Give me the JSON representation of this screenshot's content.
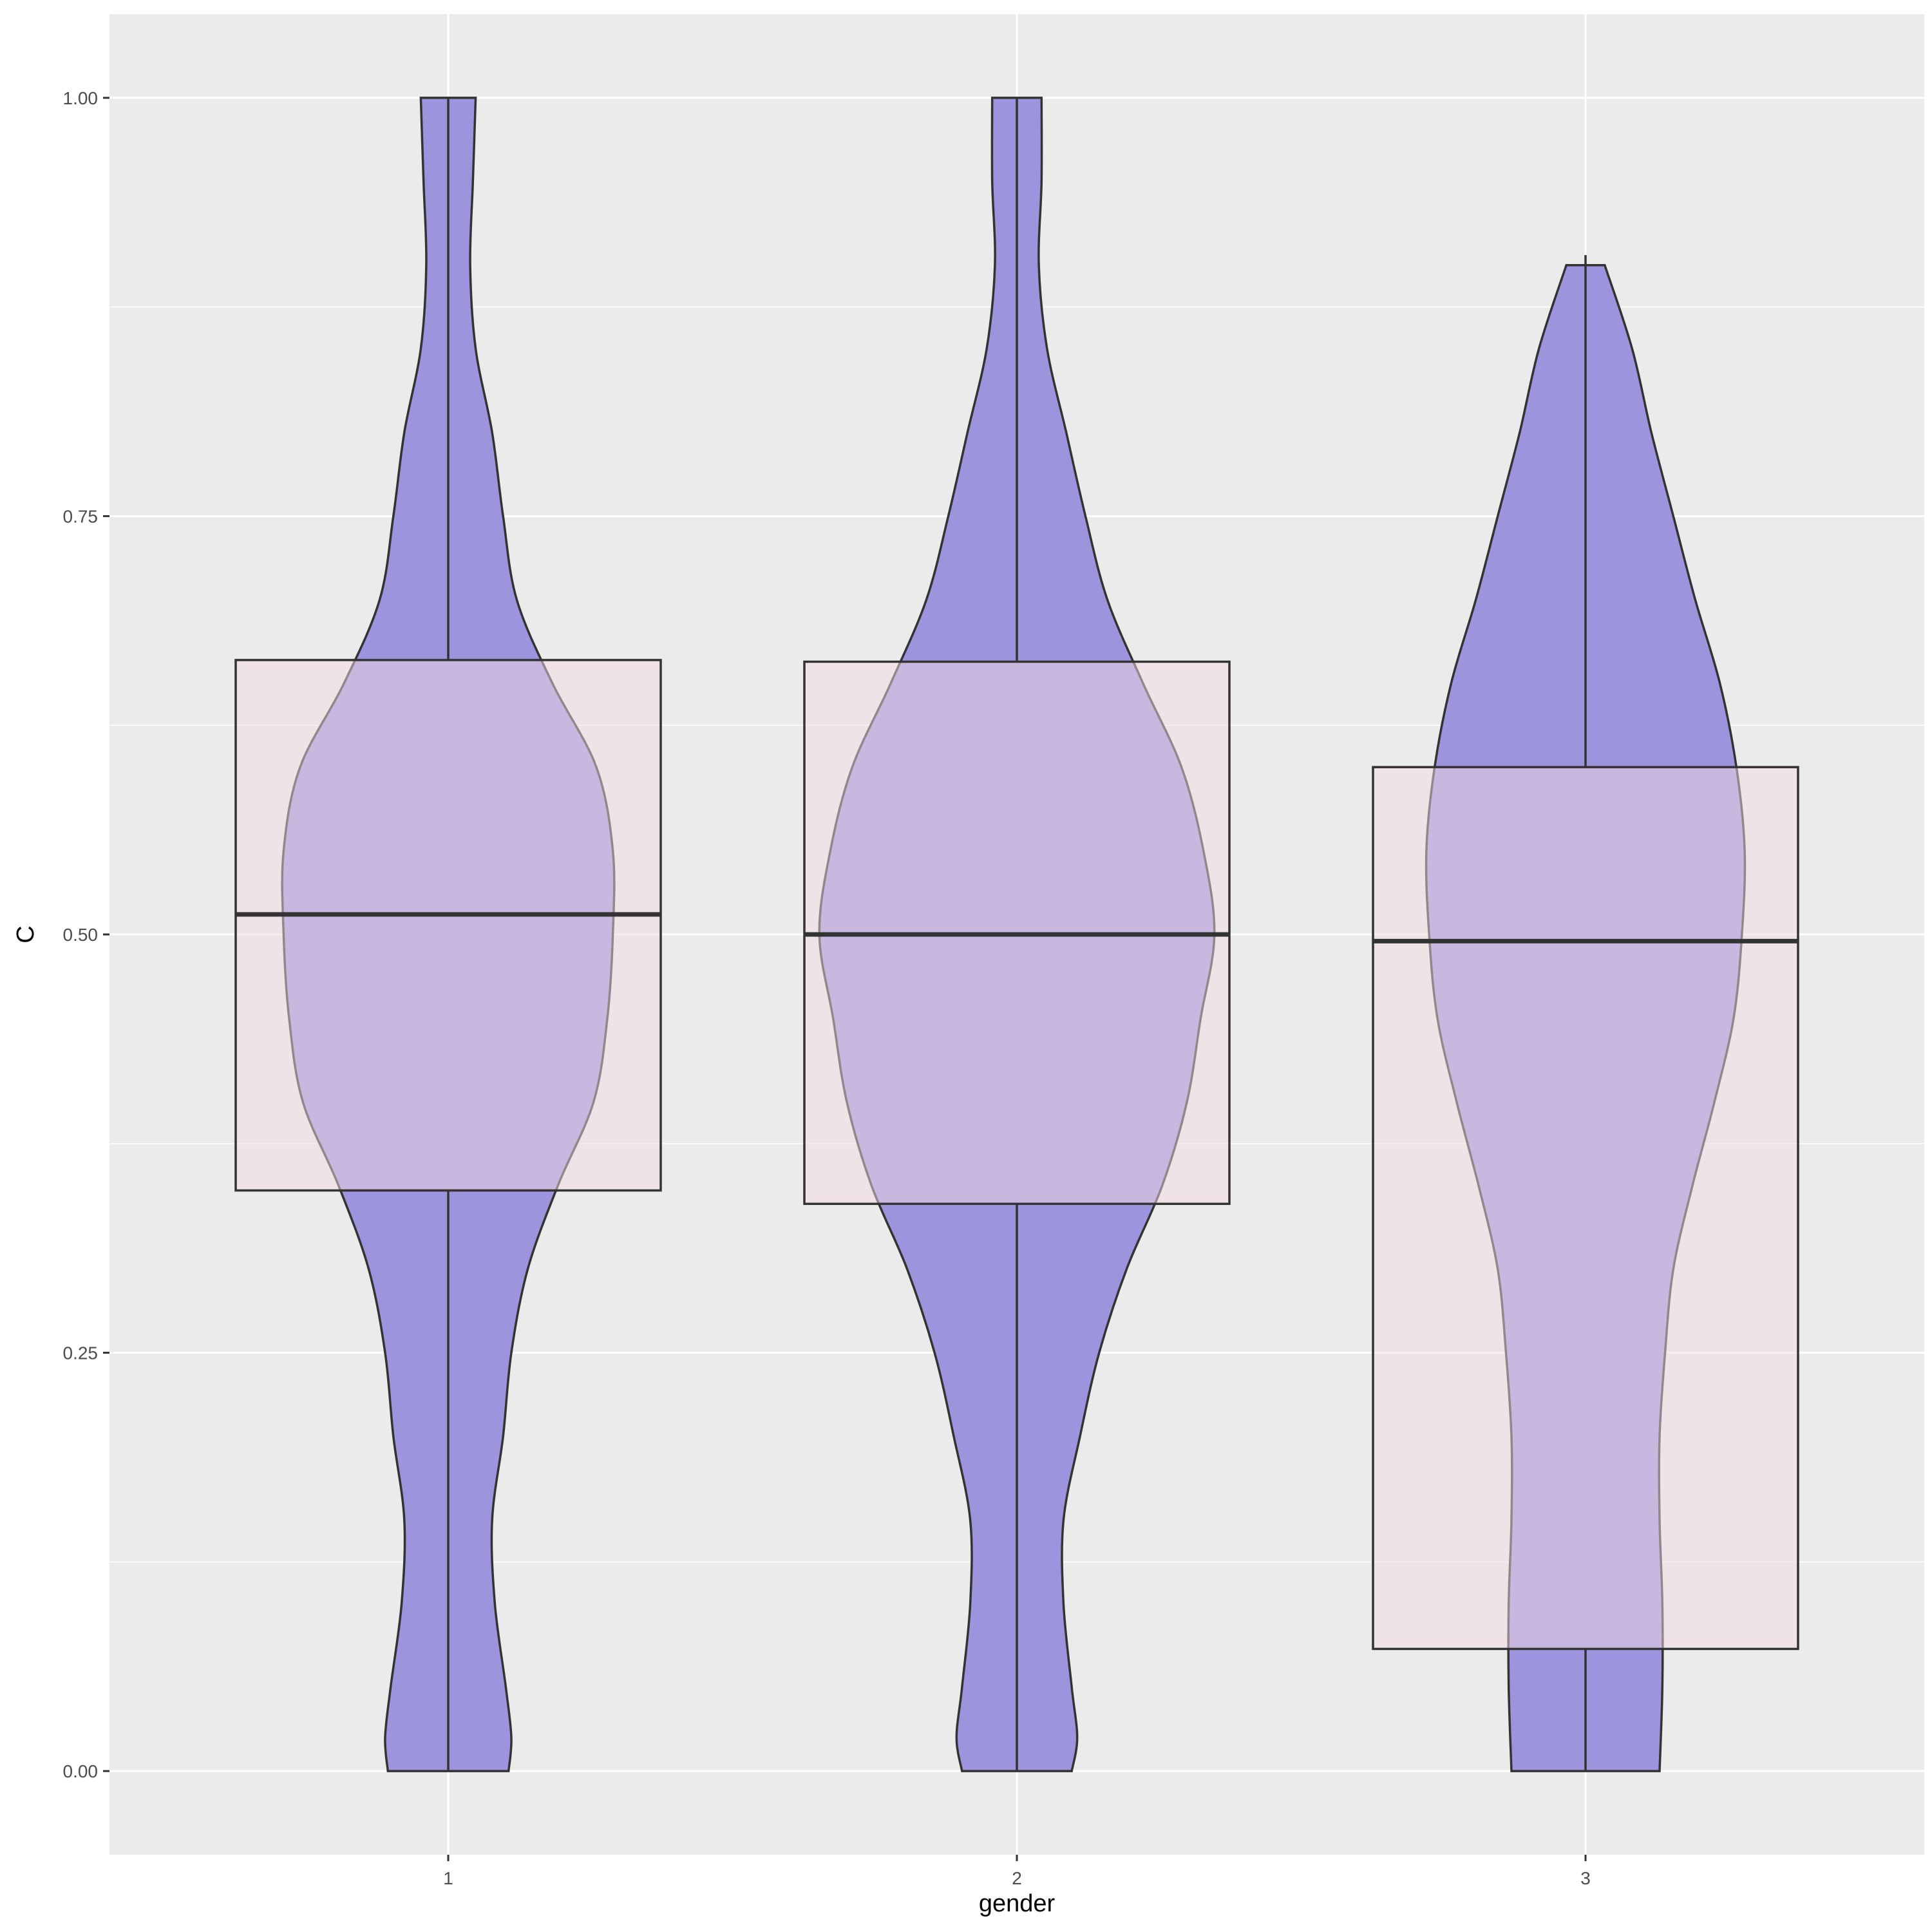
{
  "chart_data": {
    "type": "violin",
    "xlabel": "gender",
    "ylabel": "C",
    "categories": [
      "1",
      "2",
      "3"
    ],
    "ylim": [
      -0.05,
      1.05
    ],
    "y_ticks": [
      0.0,
      0.25,
      0.5,
      0.75,
      1.0
    ],
    "y_tick_labels": [
      "0.00",
      "0.25",
      "0.50",
      "0.75",
      "1.00"
    ],
    "grid": true,
    "legend": "none",
    "colors": {
      "panel": "#ebebeb",
      "grid": "#ffffff",
      "violin_fill": "#9c94dc",
      "box_fill": "#f4dce3",
      "outline": "#333333"
    },
    "violins": [
      {
        "category": "1",
        "density": [
          [
            0.0,
            0.22
          ],
          [
            0.02,
            0.23
          ],
          [
            0.05,
            0.21
          ],
          [
            0.1,
            0.17
          ],
          [
            0.15,
            0.16
          ],
          [
            0.2,
            0.2
          ],
          [
            0.25,
            0.23
          ],
          [
            0.3,
            0.29
          ],
          [
            0.35,
            0.4
          ],
          [
            0.4,
            0.53
          ],
          [
            0.45,
            0.58
          ],
          [
            0.5,
            0.6
          ],
          [
            0.55,
            0.6
          ],
          [
            0.6,
            0.54
          ],
          [
            0.65,
            0.38
          ],
          [
            0.7,
            0.25
          ],
          [
            0.75,
            0.2
          ],
          [
            0.8,
            0.16
          ],
          [
            0.85,
            0.1
          ],
          [
            0.9,
            0.08
          ],
          [
            0.95,
            0.09
          ],
          [
            1.0,
            0.1
          ]
        ]
      },
      {
        "category": "2",
        "density": [
          [
            0.0,
            0.2
          ],
          [
            0.02,
            0.22
          ],
          [
            0.05,
            0.2
          ],
          [
            0.1,
            0.17
          ],
          [
            0.15,
            0.17
          ],
          [
            0.2,
            0.23
          ],
          [
            0.25,
            0.3
          ],
          [
            0.3,
            0.4
          ],
          [
            0.35,
            0.53
          ],
          [
            0.4,
            0.62
          ],
          [
            0.45,
            0.67
          ],
          [
            0.5,
            0.72
          ],
          [
            0.55,
            0.68
          ],
          [
            0.6,
            0.6
          ],
          [
            0.65,
            0.46
          ],
          [
            0.7,
            0.33
          ],
          [
            0.75,
            0.25
          ],
          [
            0.8,
            0.18
          ],
          [
            0.85,
            0.11
          ],
          [
            0.9,
            0.08
          ],
          [
            0.95,
            0.09
          ],
          [
            1.0,
            0.09
          ]
        ]
      },
      {
        "category": "3",
        "density": [
          [
            0.0,
            0.27
          ],
          [
            0.05,
            0.28
          ],
          [
            0.1,
            0.28
          ],
          [
            0.15,
            0.27
          ],
          [
            0.2,
            0.27
          ],
          [
            0.25,
            0.29
          ],
          [
            0.3,
            0.32
          ],
          [
            0.35,
            0.39
          ],
          [
            0.4,
            0.47
          ],
          [
            0.45,
            0.54
          ],
          [
            0.5,
            0.57
          ],
          [
            0.55,
            0.58
          ],
          [
            0.6,
            0.55
          ],
          [
            0.65,
            0.49
          ],
          [
            0.7,
            0.4
          ],
          [
            0.75,
            0.32
          ],
          [
            0.8,
            0.24
          ],
          [
            0.85,
            0.17
          ],
          [
            0.9,
            0.07
          ]
        ]
      }
    ],
    "boxes": [
      {
        "category": "1",
        "q1": 0.347,
        "median": 0.512,
        "q3": 0.664,
        "lower_whisker": 0.0,
        "upper_whisker": 1.0
      },
      {
        "category": "2",
        "q1": 0.339,
        "median": 0.5,
        "q3": 0.663,
        "lower_whisker": 0.0,
        "upper_whisker": 1.0
      },
      {
        "category": "3",
        "q1": 0.073,
        "median": 0.496,
        "q3": 0.6,
        "lower_whisker": 0.0,
        "upper_whisker": 0.906
      }
    ]
  }
}
